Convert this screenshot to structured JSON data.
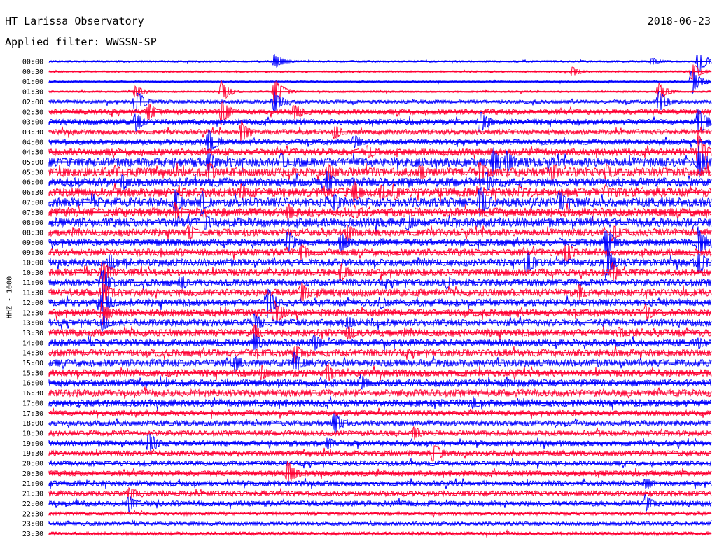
{
  "header": {
    "title": "HT Larissa Observatory",
    "date": "2018-06-23",
    "filter": "Applied filter: WWSSN-SP"
  },
  "chart_data": {
    "type": "line",
    "ylabel": "HHZ - 1000",
    "time_labels": [
      "00:00",
      "00:30",
      "01:00",
      "01:30",
      "02:00",
      "02:30",
      "03:00",
      "03:30",
      "04:00",
      "04:30",
      "05:00",
      "05:30",
      "06:00",
      "06:30",
      "07:00",
      "07:30",
      "08:00",
      "08:30",
      "09:00",
      "09:30",
      "10:00",
      "10:30",
      "11:00",
      "11:30",
      "12:00",
      "12:30",
      "13:00",
      "13:30",
      "14:00",
      "14:30",
      "15:00",
      "15:30",
      "16:00",
      "16:30",
      "17:00",
      "17:30",
      "18:00",
      "18:30",
      "19:00",
      "19:30",
      "20:00",
      "20:30",
      "21:00",
      "21:30",
      "22:00",
      "22:30",
      "23:00",
      "23:30"
    ],
    "trace_colors": [
      "#0000ff",
      "#ff0033"
    ],
    "trace_color_order": "alternating, starting blue",
    "noise_level": [
      1,
      1,
      1,
      1,
      2,
      3,
      3,
      3,
      3,
      4,
      5,
      5,
      5,
      5,
      5,
      5,
      5,
      4,
      4,
      4,
      4,
      4,
      4,
      4,
      4,
      4,
      4,
      4,
      4,
      4,
      4,
      4,
      4,
      4,
      4,
      3,
      3,
      3,
      3,
      3,
      3,
      3,
      3,
      3,
      3,
      2,
      2,
      2
    ],
    "events": [
      {
        "row": 0,
        "pos": 0.34,
        "amp": 12
      },
      {
        "row": 0,
        "pos": 0.91,
        "amp": 6
      },
      {
        "row": 0,
        "pos": 0.98,
        "amp": 18
      },
      {
        "row": 1,
        "pos": 0.79,
        "amp": 8
      },
      {
        "row": 1,
        "pos": 0.97,
        "amp": 14
      },
      {
        "row": 2,
        "pos": 0.97,
        "amp": 20
      },
      {
        "row": 3,
        "pos": 0.13,
        "amp": 10
      },
      {
        "row": 3,
        "pos": 0.26,
        "amp": 16
      },
      {
        "row": 3,
        "pos": 0.34,
        "amp": 22
      },
      {
        "row": 3,
        "pos": 0.92,
        "amp": 14
      },
      {
        "row": 4,
        "pos": 0.13,
        "amp": 20
      },
      {
        "row": 4,
        "pos": 0.34,
        "amp": 18
      },
      {
        "row": 4,
        "pos": 0.92,
        "amp": 18
      },
      {
        "row": 5,
        "pos": 0.15,
        "amp": 14
      },
      {
        "row": 5,
        "pos": 0.26,
        "amp": 20
      },
      {
        "row": 5,
        "pos": 0.37,
        "amp": 14
      },
      {
        "row": 6,
        "pos": 0.13,
        "amp": 16
      },
      {
        "row": 6,
        "pos": 0.65,
        "amp": 22
      },
      {
        "row": 6,
        "pos": 0.98,
        "amp": 26
      },
      {
        "row": 7,
        "pos": 0.29,
        "amp": 18
      },
      {
        "row": 7,
        "pos": 0.43,
        "amp": 12
      },
      {
        "row": 8,
        "pos": 0.24,
        "amp": 20
      },
      {
        "row": 8,
        "pos": 0.46,
        "amp": 12
      },
      {
        "row": 9,
        "pos": 0.48,
        "amp": 14
      },
      {
        "row": 9,
        "pos": 0.98,
        "amp": 30
      },
      {
        "row": 10,
        "pos": 0.24,
        "amp": 18
      },
      {
        "row": 10,
        "pos": 0.35,
        "amp": 14
      },
      {
        "row": 10,
        "pos": 0.67,
        "amp": 24
      },
      {
        "row": 10,
        "pos": 0.69,
        "amp": 20
      },
      {
        "row": 10,
        "pos": 0.98,
        "amp": 28
      },
      {
        "row": 11,
        "pos": 0.1,
        "amp": 12
      },
      {
        "row": 11,
        "pos": 0.24,
        "amp": 18
      },
      {
        "row": 11,
        "pos": 0.42,
        "amp": 16
      },
      {
        "row": 11,
        "pos": 0.56,
        "amp": 14
      },
      {
        "row": 11,
        "pos": 0.65,
        "amp": 20
      },
      {
        "row": 11,
        "pos": 0.76,
        "amp": 16
      },
      {
        "row": 11,
        "pos": 0.84,
        "amp": 14
      },
      {
        "row": 12,
        "pos": 0.11,
        "amp": 14
      },
      {
        "row": 12,
        "pos": 0.42,
        "amp": 18
      },
      {
        "row": 12,
        "pos": 0.66,
        "amp": 16
      },
      {
        "row": 13,
        "pos": 0.29,
        "amp": 14
      },
      {
        "row": 13,
        "pos": 0.46,
        "amp": 18
      },
      {
        "row": 13,
        "pos": 0.5,
        "amp": 14
      },
      {
        "row": 13,
        "pos": 0.52,
        "amp": 14
      },
      {
        "row": 13,
        "pos": 0.71,
        "amp": 12
      },
      {
        "row": 13,
        "pos": 0.84,
        "amp": 12
      },
      {
        "row": 14,
        "pos": 0.19,
        "amp": 20
      },
      {
        "row": 14,
        "pos": 0.23,
        "amp": 18
      },
      {
        "row": 14,
        "pos": 0.43,
        "amp": 16
      },
      {
        "row": 14,
        "pos": 0.65,
        "amp": 26
      },
      {
        "row": 14,
        "pos": 0.77,
        "amp": 18
      },
      {
        "row": 15,
        "pos": 0.19,
        "amp": 16
      },
      {
        "row": 15,
        "pos": 0.36,
        "amp": 16
      },
      {
        "row": 15,
        "pos": 0.46,
        "amp": 14
      },
      {
        "row": 16,
        "pos": 0.23,
        "amp": 22
      },
      {
        "row": 16,
        "pos": 0.54,
        "amp": 16
      },
      {
        "row": 17,
        "pos": 0.21,
        "amp": 14
      },
      {
        "row": 17,
        "pos": 0.45,
        "amp": 16
      },
      {
        "row": 17,
        "pos": 0.85,
        "amp": 14
      },
      {
        "row": 18,
        "pos": 0.36,
        "amp": 18
      },
      {
        "row": 18,
        "pos": 0.44,
        "amp": 18
      },
      {
        "row": 18,
        "pos": 0.84,
        "amp": 28
      },
      {
        "row": 18,
        "pos": 0.98,
        "amp": 24
      },
      {
        "row": 19,
        "pos": 0.38,
        "amp": 14
      },
      {
        "row": 19,
        "pos": 0.78,
        "amp": 18
      },
      {
        "row": 20,
        "pos": 0.09,
        "amp": 16
      },
      {
        "row": 20,
        "pos": 0.72,
        "amp": 22
      },
      {
        "row": 20,
        "pos": 0.84,
        "amp": 28
      },
      {
        "row": 20,
        "pos": 0.98,
        "amp": 20
      },
      {
        "row": 21,
        "pos": 0.08,
        "amp": 22
      },
      {
        "row": 21,
        "pos": 0.44,
        "amp": 16
      },
      {
        "row": 21,
        "pos": 0.85,
        "amp": 16
      },
      {
        "row": 22,
        "pos": 0.08,
        "amp": 26
      },
      {
        "row": 22,
        "pos": 0.2,
        "amp": 12
      },
      {
        "row": 22,
        "pos": 0.6,
        "amp": 12
      },
      {
        "row": 23,
        "pos": 0.08,
        "amp": 22
      },
      {
        "row": 23,
        "pos": 0.38,
        "amp": 18
      },
      {
        "row": 23,
        "pos": 0.8,
        "amp": 14
      },
      {
        "row": 24,
        "pos": 0.08,
        "amp": 22
      },
      {
        "row": 24,
        "pos": 0.33,
        "amp": 26
      },
      {
        "row": 24,
        "pos": 0.5,
        "amp": 12
      },
      {
        "row": 25,
        "pos": 0.08,
        "amp": 20
      },
      {
        "row": 25,
        "pos": 0.34,
        "amp": 22
      },
      {
        "row": 25,
        "pos": 0.9,
        "amp": 14
      },
      {
        "row": 26,
        "pos": 0.08,
        "amp": 14
      },
      {
        "row": 26,
        "pos": 0.31,
        "amp": 16
      },
      {
        "row": 26,
        "pos": 0.45,
        "amp": 12
      },
      {
        "row": 27,
        "pos": 0.31,
        "amp": 14
      },
      {
        "row": 27,
        "pos": 0.45,
        "amp": 14
      },
      {
        "row": 27,
        "pos": 0.86,
        "amp": 10
      },
      {
        "row": 28,
        "pos": 0.31,
        "amp": 16
      },
      {
        "row": 28,
        "pos": 0.4,
        "amp": 14
      },
      {
        "row": 28,
        "pos": 0.98,
        "amp": 10
      },
      {
        "row": 29,
        "pos": 0.37,
        "amp": 16
      },
      {
        "row": 30,
        "pos": 0.28,
        "amp": 14
      },
      {
        "row": 30,
        "pos": 0.37,
        "amp": 18
      },
      {
        "row": 31,
        "pos": 0.32,
        "amp": 12
      },
      {
        "row": 31,
        "pos": 0.42,
        "amp": 16
      },
      {
        "row": 32,
        "pos": 0.47,
        "amp": 14
      },
      {
        "row": 32,
        "pos": 0.69,
        "amp": 10
      },
      {
        "row": 34,
        "pos": 0.64,
        "amp": 10
      },
      {
        "row": 36,
        "pos": 0.43,
        "amp": 18
      },
      {
        "row": 37,
        "pos": 0.55,
        "amp": 12
      },
      {
        "row": 38,
        "pos": 0.15,
        "amp": 18
      },
      {
        "row": 38,
        "pos": 0.42,
        "amp": 10
      },
      {
        "row": 39,
        "pos": 0.58,
        "amp": 18
      },
      {
        "row": 41,
        "pos": 0.36,
        "amp": 20
      },
      {
        "row": 42,
        "pos": 0.9,
        "amp": 10
      },
      {
        "row": 43,
        "pos": 0.12,
        "amp": 12
      },
      {
        "row": 44,
        "pos": 0.12,
        "amp": 14
      },
      {
        "row": 44,
        "pos": 0.9,
        "amp": 14
      }
    ]
  }
}
